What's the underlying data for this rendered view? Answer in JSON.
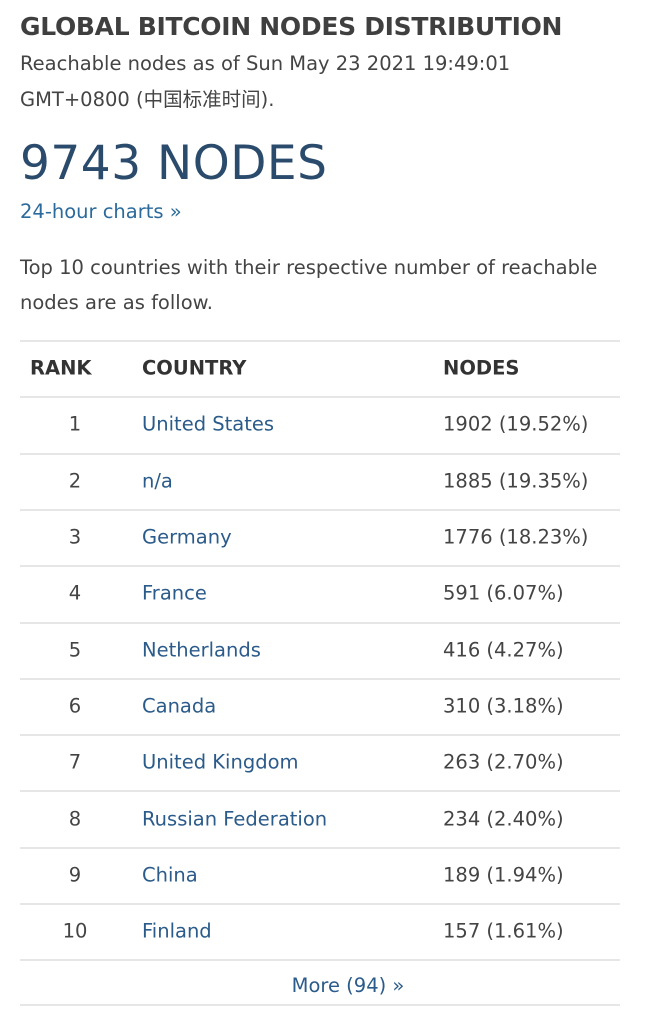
{
  "header": {
    "title": "GLOBAL BITCOIN NODES DISTRIBUTION",
    "subtitle": "Reachable nodes as of Sun May 23 2021 19:49:01 GMT+0800 (中国标准时间)."
  },
  "summary": {
    "count": "9743 NODES",
    "link": "24-hour charts »"
  },
  "intro": "Top 10 countries with their respective number of reachable nodes are as follow.",
  "table": {
    "columns": [
      "RANK",
      "COUNTRY",
      "NODES"
    ],
    "rows": [
      [
        "1",
        "United States",
        "1902 (19.52%)"
      ],
      [
        "2",
        "n/a",
        "1885 (19.35%)"
      ],
      [
        "3",
        "Germany",
        "1776 (18.23%)"
      ],
      [
        "4",
        "France",
        "591 (6.07%)"
      ],
      [
        "5",
        "Netherlands",
        "416 (4.27%)"
      ],
      [
        "6",
        "Canada",
        "310 (3.18%)"
      ],
      [
        "7",
        "United Kingdom",
        "263 (2.70%)"
      ],
      [
        "8",
        "Russian Federation",
        "234 (2.40%)"
      ],
      [
        "9",
        "China",
        "189 (1.94%)"
      ],
      [
        "10",
        "Finland",
        "157 (1.61%)"
      ]
    ]
  },
  "footer": {
    "more": "More (94) »"
  }
}
